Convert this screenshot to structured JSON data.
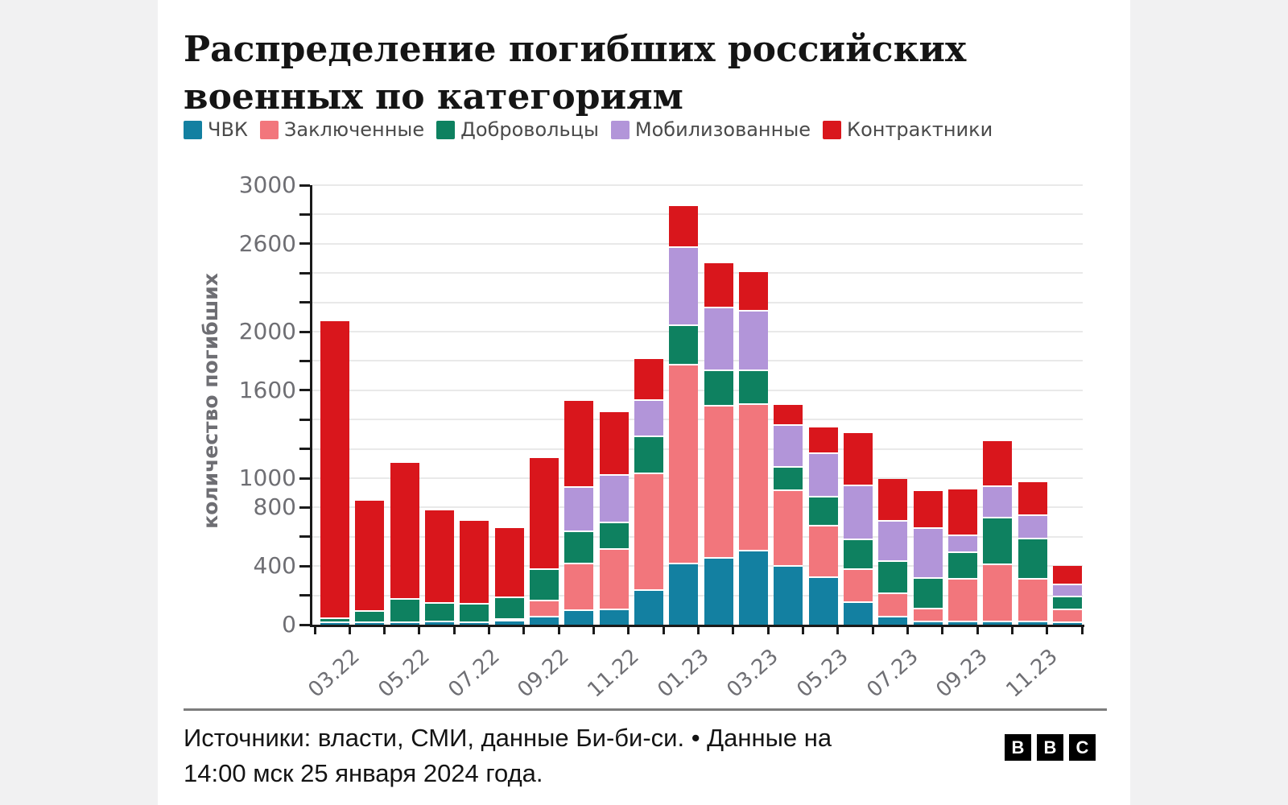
{
  "title": {
    "line1": "Распределение погибших российских",
    "line2": "военных по категориям"
  },
  "legend": [
    {
      "label": "ЧВК",
      "color": "#1380A1"
    },
    {
      "label": "Заключенные",
      "color": "#F2767C"
    },
    {
      "label": "Добровольцы",
      "color": "#0E8160"
    },
    {
      "label": "Мобилизованные",
      "color": "#B295D9"
    },
    {
      "label": "Контрактники",
      "color": "#D9161C"
    }
  ],
  "chart_data": {
    "type": "bar",
    "subtype": "stacked",
    "title": "Распределение погибших российских военных по категориям",
    "xlabel": "",
    "ylabel": "количество погибших",
    "ylim": [
      0,
      3000
    ],
    "grid": true,
    "y_tick_step": 200,
    "y_tick_labels": [
      0,
      400,
      800,
      1000,
      1600,
      2000,
      2600,
      3000
    ],
    "categories": [
      "03.22",
      "04.22",
      "05.22",
      "06.22",
      "07.22",
      "08.22",
      "09.22",
      "10.22",
      "11.22",
      "12.22",
      "01.23",
      "02.23",
      "03.23",
      "04.23",
      "05.23",
      "06.23",
      "07.23",
      "08.23",
      "09.23",
      "10.23",
      "11.23",
      "12.23"
    ],
    "x_tick_labels_shown": [
      "03.22",
      "05.22",
      "07.22",
      "09.22",
      "11.22",
      "01.23",
      "03.23",
      "05.23",
      "07.23",
      "09.23",
      "11.23"
    ],
    "series": [
      {
        "name": "ЧВК",
        "color": "#1380A1",
        "values": [
          10,
          10,
          10,
          15,
          10,
          20,
          50,
          95,
          100,
          230,
          410,
          450,
          500,
          395,
          320,
          150,
          50,
          15,
          15,
          15,
          15,
          10
        ]
      },
      {
        "name": "Заключенные",
        "color": "#F2767C",
        "values": [
          0,
          0,
          0,
          0,
          0,
          15,
          110,
          315,
          410,
          800,
          1360,
          1040,
          1000,
          515,
          350,
          225,
          160,
          90,
          295,
          390,
          295,
          90
        ]
      },
      {
        "name": "Добровольцы",
        "color": "#0E8160",
        "values": [
          30,
          80,
          160,
          130,
          125,
          145,
          215,
          220,
          180,
          250,
          270,
          240,
          230,
          160,
          200,
          200,
          220,
          210,
          180,
          320,
          275,
          85
        ]
      },
      {
        "name": "Мобилизованные",
        "color": "#B295D9",
        "values": [
          0,
          0,
          0,
          0,
          0,
          0,
          0,
          305,
          325,
          250,
          530,
          430,
          410,
          285,
          295,
          370,
          275,
          340,
          115,
          215,
          155,
          85
        ]
      },
      {
        "name": "Контрактники",
        "color": "#D9161C",
        "values": [
          2030,
          755,
          935,
          635,
          575,
          480,
          760,
          590,
          435,
          285,
          285,
          310,
          265,
          145,
          180,
          365,
          290,
          260,
          320,
          315,
          230,
          130
        ]
      }
    ]
  },
  "footer": {
    "source_line1": "Источники: власти, СМИ, данные Би-би-си. • Данные на",
    "source_line2": "14:00 мск 25 января 2024 года.",
    "logo_letters": [
      "B",
      "B",
      "C"
    ]
  },
  "colors": {
    "axis": "#1a1a1a",
    "grid": "#e9e9e9",
    "tick_label": "#6e6e73",
    "title_text": "#151515",
    "footer_text": "#141414",
    "panel_bg": "#ffffff",
    "page_bg": "#f1f1f2",
    "logo_bg": "#000000"
  }
}
